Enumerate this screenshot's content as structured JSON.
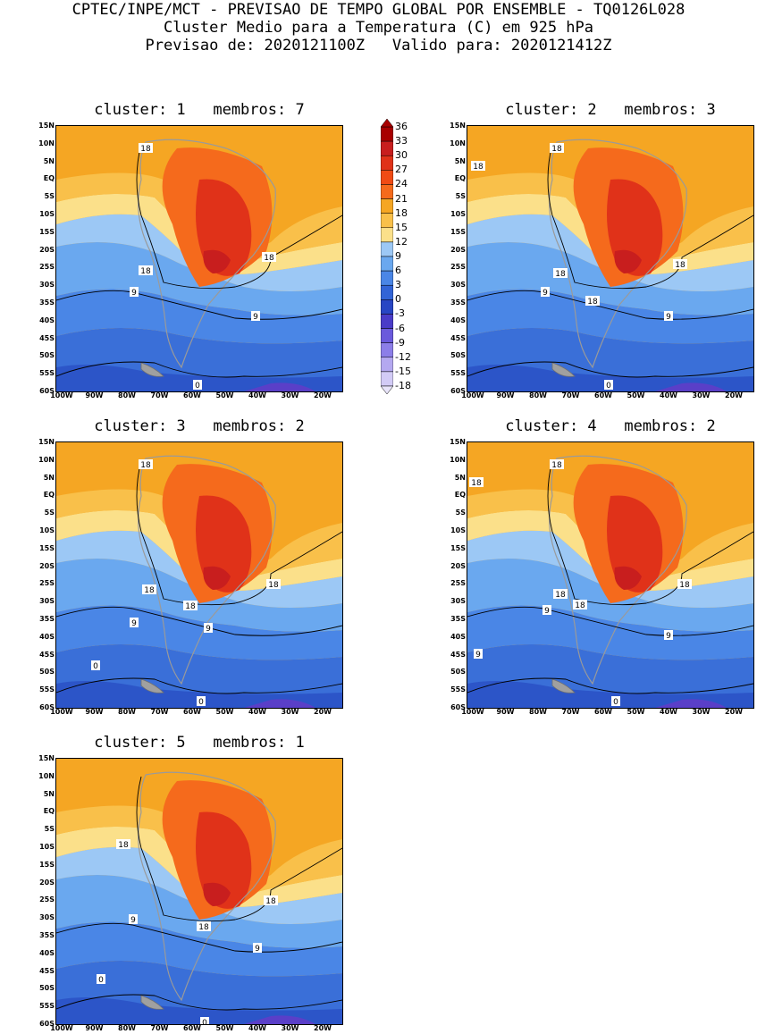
{
  "header": {
    "line1": "CPTEC/INPE/MCT - PREVISAO DE TEMPO GLOBAL POR ENSEMBLE - TQ0126L028",
    "line2": "Cluster Medio para a Temperatura (C) em 925 hPa",
    "line3": "Previsao de: 2020121100Z   Valido para: 2020121412Z"
  },
  "lat_labels": [
    "15N",
    "10N",
    "5N",
    "EQ",
    "5S",
    "10S",
    "15S",
    "20S",
    "25S",
    "30S",
    "35S",
    "40S",
    "45S",
    "50S",
    "55S",
    "60S"
  ],
  "lon_labels": [
    "100W",
    "90W",
    "80W",
    "70W",
    "60W",
    "50W",
    "40W",
    "30W",
    "20W"
  ],
  "panels": [
    {
      "title": "cluster: 1   membros: 7",
      "contour_labels": [
        "18",
        "18",
        "18",
        "9",
        "9",
        "0"
      ]
    },
    {
      "title": "cluster: 2   membros: 3",
      "contour_labels": [
        "18",
        "18",
        "18",
        "18",
        "18",
        "9",
        "9",
        "0"
      ]
    },
    {
      "title": "cluster: 3   membros: 2",
      "contour_labels": [
        "18",
        "18",
        "18",
        "18",
        "9",
        "9",
        "0",
        "0"
      ]
    },
    {
      "title": "cluster: 4   membros: 2",
      "contour_labels": [
        "18",
        "18",
        "18",
        "18",
        "18",
        "9",
        "9",
        "9",
        "0"
      ]
    },
    {
      "title": "cluster: 5   membros: 1",
      "contour_labels": [
        "18",
        "18",
        "18",
        "9",
        "9",
        "0",
        "0"
      ]
    }
  ],
  "colorbar": {
    "labels": [
      "36",
      "33",
      "30",
      "27",
      "24",
      "21",
      "18",
      "15",
      "12",
      "9",
      "6",
      "3",
      "0",
      "-3",
      "-6",
      "-9",
      "-12",
      "-15",
      "-18"
    ],
    "colors": [
      "#a80000",
      "#c81e1e",
      "#e03219",
      "#f04b14",
      "#f56a1c",
      "#f5a623",
      "#f9c04a",
      "#fbe08a",
      "#9cc8f5",
      "#6aa8ef",
      "#4a86e6",
      "#3264d6",
      "#2846c4",
      "#4a3cc8",
      "#6a5adc",
      "#8c7ee8",
      "#b4a8f0",
      "#d2cbf6"
    ]
  }
}
